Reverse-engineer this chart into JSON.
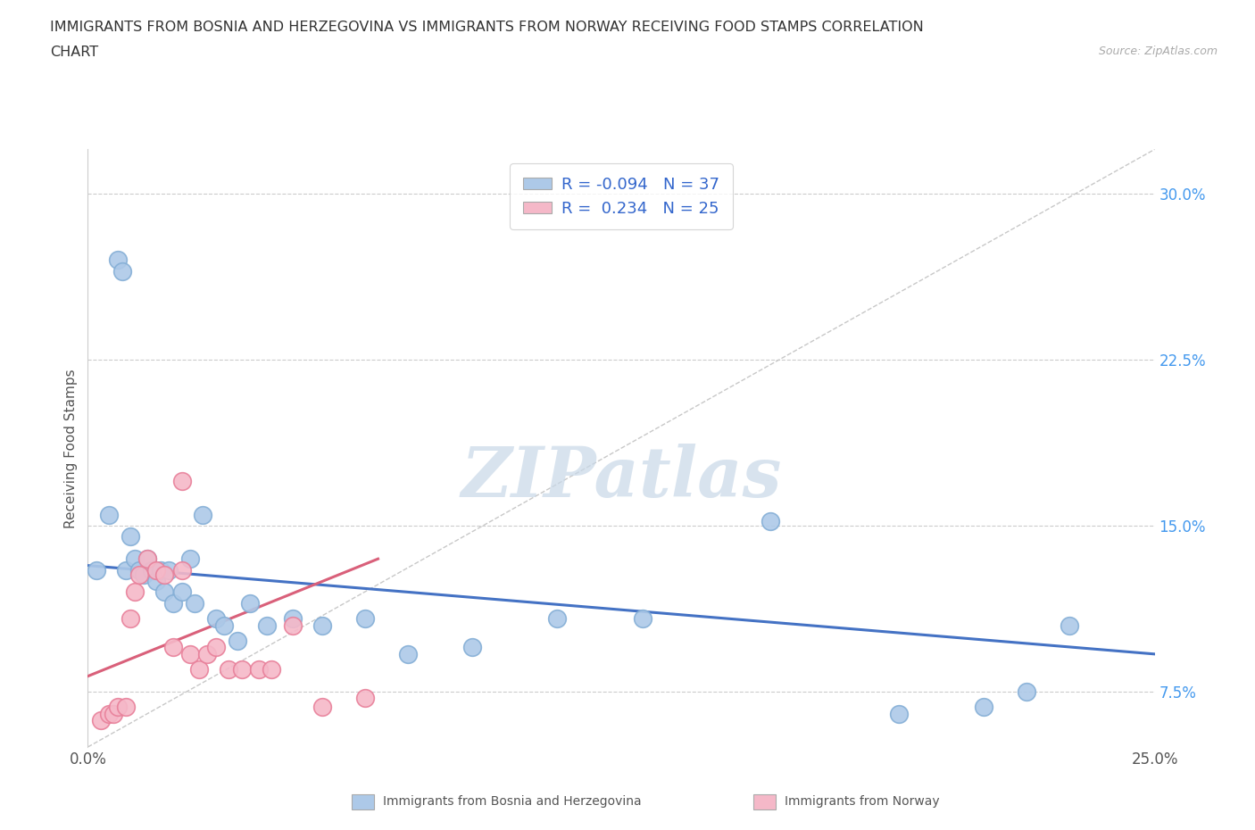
{
  "title_line1": "IMMIGRANTS FROM BOSNIA AND HERZEGOVINA VS IMMIGRANTS FROM NORWAY RECEIVING FOOD STAMPS CORRELATION",
  "title_line2": "CHART",
  "source_text": "Source: ZipAtlas.com",
  "ylabel": "Receiving Food Stamps",
  "xlim": [
    0.0,
    0.25
  ],
  "ylim": [
    0.05,
    0.32
  ],
  "plot_ylim": [
    0.05,
    0.32
  ],
  "xticks": [
    0.0,
    0.05,
    0.1,
    0.15,
    0.2,
    0.25
  ],
  "yticks": [
    0.075,
    0.15,
    0.225,
    0.3
  ],
  "bosnia_color": "#adc9e8",
  "bosnia_edge_color": "#85afd6",
  "norway_color": "#f5b8c8",
  "norway_edge_color": "#e8809a",
  "trendline_bosnia_color": "#4472c4",
  "trendline_norway_color": "#d9607a",
  "ref_line_color": "#c8c8c8",
  "watermark_color": "#c8d8e8",
  "bosnia_x": [
    0.002,
    0.005,
    0.007,
    0.008,
    0.009,
    0.01,
    0.011,
    0.012,
    0.013,
    0.014,
    0.015,
    0.016,
    0.017,
    0.018,
    0.019,
    0.02,
    0.022,
    0.024,
    0.025,
    0.027,
    0.03,
    0.032,
    0.035,
    0.038,
    0.042,
    0.048,
    0.055,
    0.065,
    0.075,
    0.09,
    0.11,
    0.13,
    0.16,
    0.19,
    0.21,
    0.22,
    0.23
  ],
  "bosnia_y": [
    0.13,
    0.155,
    0.27,
    0.265,
    0.13,
    0.145,
    0.135,
    0.13,
    0.128,
    0.135,
    0.13,
    0.125,
    0.13,
    0.12,
    0.13,
    0.115,
    0.12,
    0.135,
    0.115,
    0.155,
    0.108,
    0.105,
    0.098,
    0.115,
    0.105,
    0.108,
    0.105,
    0.108,
    0.092,
    0.095,
    0.108,
    0.108,
    0.152,
    0.065,
    0.068,
    0.075,
    0.105
  ],
  "norway_x": [
    0.003,
    0.005,
    0.006,
    0.007,
    0.009,
    0.01,
    0.011,
    0.012,
    0.014,
    0.016,
    0.018,
    0.02,
    0.022,
    0.024,
    0.026,
    0.028,
    0.03,
    0.033,
    0.036,
    0.04,
    0.043,
    0.048,
    0.055,
    0.065,
    0.022
  ],
  "norway_y": [
    0.062,
    0.065,
    0.065,
    0.068,
    0.068,
    0.108,
    0.12,
    0.128,
    0.135,
    0.13,
    0.128,
    0.095,
    0.13,
    0.092,
    0.085,
    0.092,
    0.095,
    0.085,
    0.085,
    0.085,
    0.085,
    0.105,
    0.068,
    0.072,
    0.17
  ],
  "bosnia_trend_x0": 0.0,
  "bosnia_trend_y0": 0.132,
  "bosnia_trend_x1": 0.25,
  "bosnia_trend_y1": 0.092,
  "norway_trend_x0": 0.0,
  "norway_trend_y0": 0.082,
  "norway_trend_x1": 0.068,
  "norway_trend_y1": 0.135
}
